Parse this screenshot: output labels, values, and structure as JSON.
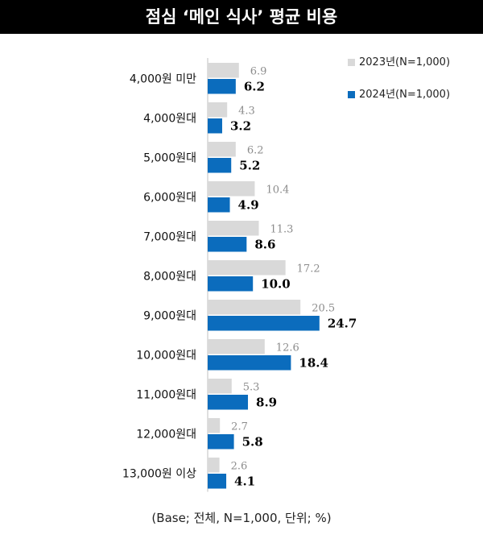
{
  "title": "점심 ‘메인 식사’ 평균 비용",
  "footnote": "(Base; 전체, N=1,000, 단위; %)",
  "colors": {
    "series_2023": "#d9d9d9",
    "series_2024": "#0b6cbd",
    "label_2023": "#8c8c8c",
    "label_2024": "#000000"
  },
  "chart_data": {
    "type": "bar",
    "orientation": "horizontal",
    "categories": [
      "4,000원 미만",
      "4,000원대",
      "5,000원대",
      "6,000원대",
      "7,000원대",
      "8,000원대",
      "9,000원대",
      "10,000원대",
      "11,000원대",
      "12,000원대",
      "13,000원 이상"
    ],
    "series": [
      {
        "name": "2023년(N=1,000)",
        "values": [
          6.9,
          4.3,
          6.2,
          10.4,
          11.3,
          17.2,
          20.5,
          12.6,
          5.3,
          2.7,
          2.6
        ]
      },
      {
        "name": "2024년(N=1,000)",
        "values": [
          6.2,
          3.2,
          5.2,
          4.9,
          8.6,
          10.0,
          24.7,
          18.4,
          8.9,
          5.8,
          4.1
        ]
      }
    ],
    "value_labels": [
      [
        "6.9",
        "4.3",
        "6.2",
        "10.4",
        "11.3",
        "17.2",
        "20.5",
        "12.6",
        "5.3",
        "2.7",
        "2.6"
      ],
      [
        "6.2",
        "3.2",
        "5.2",
        "4.9",
        "8.6",
        "10.0",
        "24.7",
        "18.4",
        "8.9",
        "5.8",
        "4.1"
      ]
    ],
    "legend_position": "top-right",
    "grid": false
  }
}
